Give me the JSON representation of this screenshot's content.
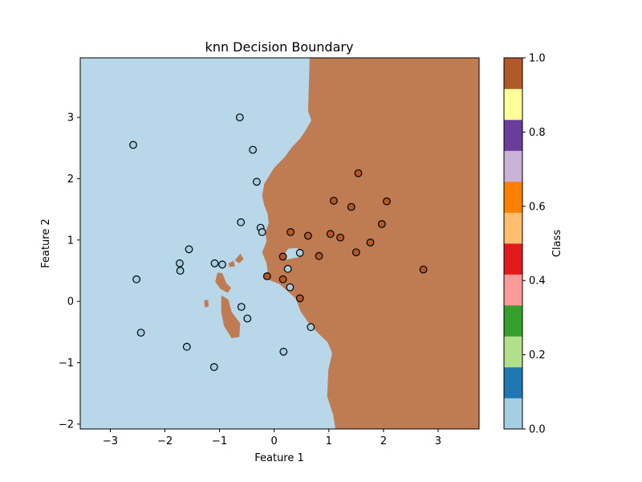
{
  "chart_data": {
    "type": "scatter",
    "title": "knn Decision Boundary",
    "xlabel": "Feature 1",
    "ylabel": "Feature 2",
    "xlim": [
      -3.55,
      3.75
    ],
    "ylim": [
      -2.08,
      3.97
    ],
    "xticks": [
      -3,
      -2,
      -1,
      0,
      1,
      2,
      3
    ],
    "yticks": [
      -2,
      -1,
      0,
      1,
      2,
      3
    ],
    "grid": false,
    "region_colors": {
      "class0": "#b8d8e9",
      "class1": "#bf7b52"
    },
    "point_colors": {
      "class0": "#a6cee3",
      "class1": "#b15928"
    },
    "series": [
      {
        "class": 0,
        "points": [
          [
            -2.58,
            2.55
          ],
          [
            -0.63,
            3.0
          ],
          [
            -0.39,
            2.47
          ],
          [
            -0.32,
            1.95
          ],
          [
            -0.61,
            1.29
          ],
          [
            -0.25,
            1.2
          ],
          [
            -0.22,
            1.13
          ],
          [
            -1.56,
            0.85
          ],
          [
            -1.73,
            0.62
          ],
          [
            -1.72,
            0.5
          ],
          [
            -2.52,
            0.36
          ],
          [
            -1.09,
            0.62
          ],
          [
            -0.95,
            0.6
          ],
          [
            -0.6,
            -0.09
          ],
          [
            -0.49,
            -0.28
          ],
          [
            -2.44,
            -0.51
          ],
          [
            -1.6,
            -0.74
          ],
          [
            -1.1,
            -1.07
          ],
          [
            0.17,
            -0.82
          ],
          [
            0.25,
            0.53
          ],
          [
            0.29,
            0.23
          ],
          [
            0.47,
            0.79
          ],
          [
            0.67,
            -0.42
          ]
        ]
      },
      {
        "class": 1,
        "points": [
          [
            1.54,
            2.09
          ],
          [
            1.09,
            1.64
          ],
          [
            1.41,
            1.54
          ],
          [
            2.06,
            1.63
          ],
          [
            1.97,
            1.26
          ],
          [
            0.3,
            1.13
          ],
          [
            0.62,
            1.07
          ],
          [
            1.03,
            1.1
          ],
          [
            1.21,
            1.04
          ],
          [
            1.76,
            0.96
          ],
          [
            1.5,
            0.8
          ],
          [
            0.82,
            0.74
          ],
          [
            0.16,
            0.73
          ],
          [
            -0.13,
            0.41
          ],
          [
            0.16,
            0.36
          ],
          [
            0.47,
            0.05
          ],
          [
            2.73,
            0.52
          ]
        ]
      }
    ],
    "boundary": {
      "class1_region": [
        [
          1.38,
          3.97
        ],
        [
          0.65,
          3.97
        ],
        [
          0.62,
          3.1
        ],
        [
          0.68,
          2.95
        ],
        [
          0.57,
          2.78
        ],
        [
          0.47,
          2.65
        ],
        [
          0.33,
          2.52
        ],
        [
          0.19,
          2.35
        ],
        [
          0.0,
          2.18
        ],
        [
          -0.18,
          1.92
        ],
        [
          -0.22,
          1.72
        ],
        [
          -0.18,
          1.56
        ],
        [
          -0.12,
          1.43
        ],
        [
          -0.1,
          1.28
        ],
        [
          -0.16,
          1.12
        ],
        [
          -0.14,
          0.98
        ],
        [
          -0.22,
          0.8
        ],
        [
          -0.14,
          0.62
        ],
        [
          -0.12,
          0.47
        ],
        [
          -0.1,
          0.35
        ],
        [
          0.1,
          0.28
        ],
        [
          0.24,
          0.17
        ],
        [
          0.4,
          0.04
        ],
        [
          0.48,
          -0.16
        ],
        [
          0.62,
          -0.34
        ],
        [
          0.78,
          -0.5
        ],
        [
          0.98,
          -0.67
        ],
        [
          1.06,
          -0.85
        ],
        [
          0.99,
          -1.12
        ],
        [
          0.97,
          -1.55
        ],
        [
          1.08,
          -1.85
        ],
        [
          1.12,
          -2.08
        ],
        [
          3.75,
          -2.08
        ],
        [
          3.75,
          3.97
        ]
      ],
      "class0_notch": [
        [
          0.18,
          0.76
        ],
        [
          0.26,
          0.86
        ],
        [
          0.42,
          0.87
        ],
        [
          0.52,
          0.79
        ],
        [
          0.45,
          0.72
        ],
        [
          0.32,
          0.7
        ],
        [
          0.22,
          0.68
        ]
      ],
      "class1_islands": [
        [
          [
            -1.04,
            0.47
          ],
          [
            -0.95,
            0.46
          ],
          [
            -0.88,
            0.3
          ],
          [
            -0.79,
            0.22
          ],
          [
            -0.85,
            0.14
          ],
          [
            -0.98,
            0.2
          ],
          [
            -1.08,
            0.32
          ]
        ],
        [
          [
            -0.97,
            0.1
          ],
          [
            -0.84,
            0.03
          ],
          [
            -0.78,
            -0.17
          ],
          [
            -0.62,
            -0.36
          ],
          [
            -0.64,
            -0.58
          ],
          [
            -0.78,
            -0.6
          ],
          [
            -0.92,
            -0.4
          ],
          [
            -0.97,
            -0.17
          ]
        ],
        [
          [
            -0.72,
            0.67
          ],
          [
            -0.62,
            0.78
          ],
          [
            -0.56,
            0.69
          ],
          [
            -0.64,
            0.62
          ]
        ],
        [
          [
            -0.84,
            0.62
          ],
          [
            -0.74,
            0.66
          ],
          [
            -0.72,
            0.57
          ],
          [
            -0.82,
            0.56
          ]
        ],
        [
          [
            -1.28,
            0.02
          ],
          [
            -1.21,
            0.02
          ],
          [
            -1.2,
            -0.08
          ],
          [
            -1.27,
            -0.1
          ]
        ]
      ]
    },
    "colorbar": {
      "label": "Class",
      "ticks": [
        0.0,
        0.2,
        0.4,
        0.6,
        0.8,
        1.0
      ],
      "tick_labels": [
        "0.0",
        "0.2",
        "0.4",
        "0.6",
        "0.8",
        "1.0"
      ],
      "colors": [
        "#a6cee3",
        "#1f78b4",
        "#b2df8a",
        "#33a02c",
        "#fb9a99",
        "#e31a1c",
        "#fdbf6f",
        "#ff7f00",
        "#cab2d6",
        "#6a3d9a",
        "#ffff99",
        "#b15928"
      ]
    }
  }
}
